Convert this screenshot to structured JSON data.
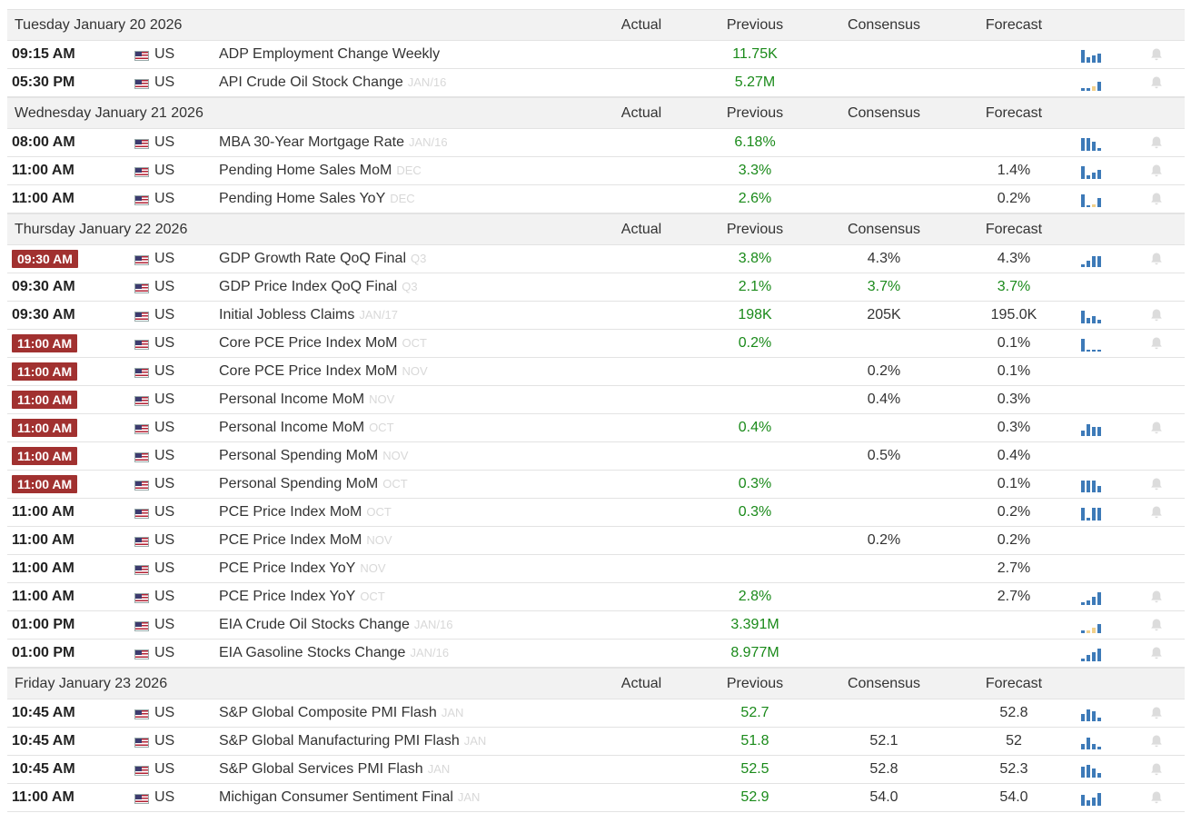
{
  "columns": {
    "actual": "Actual",
    "previous": "Previous",
    "consensus": "Consensus",
    "forecast": "Forecast"
  },
  "days": [
    {
      "title": "Tuesday January 20 2026",
      "events": [
        {
          "time": "09:15 AM",
          "badge": false,
          "country": "US",
          "name": "ADP Employment Change Weekly",
          "ref": "",
          "previous": "11.75K",
          "consensus": "",
          "forecast": "",
          "consensus_green": false,
          "forecast_green": false,
          "spark": [
            14,
            6,
            8,
            10
          ],
          "neg": [],
          "bell": true
        },
        {
          "time": "05:30 PM",
          "badge": false,
          "country": "US",
          "name": "API Crude Oil Stock Change",
          "ref": "JAN/16",
          "previous": "5.27M",
          "consensus": "",
          "forecast": "",
          "consensus_green": false,
          "forecast_green": false,
          "spark": [
            3,
            3,
            5,
            10
          ],
          "neg": [
            2
          ],
          "bell": true
        }
      ]
    },
    {
      "title": "Wednesday January 21 2026",
      "events": [
        {
          "time": "08:00 AM",
          "badge": false,
          "country": "US",
          "name": "MBA 30-Year Mortgage Rate",
          "ref": "JAN/16",
          "previous": "6.18%",
          "consensus": "",
          "forecast": "",
          "consensus_green": false,
          "forecast_green": false,
          "spark": [
            14,
            14,
            10,
            3
          ],
          "neg": [],
          "bell": true
        },
        {
          "time": "11:00 AM",
          "badge": false,
          "country": "US",
          "name": "Pending Home Sales MoM",
          "ref": "DEC",
          "previous": "3.3%",
          "consensus": "",
          "forecast": "1.4%",
          "consensus_green": false,
          "forecast_green": false,
          "spark": [
            14,
            4,
            7,
            10
          ],
          "neg": [],
          "bell": true
        },
        {
          "time": "11:00 AM",
          "badge": false,
          "country": "US",
          "name": "Pending Home Sales YoY",
          "ref": "DEC",
          "previous": "2.6%",
          "consensus": "",
          "forecast": "0.2%",
          "consensus_green": false,
          "forecast_green": false,
          "spark": [
            14,
            2,
            3,
            10
          ],
          "neg": [
            2
          ],
          "bell": true
        }
      ]
    },
    {
      "title": "Thursday January 22 2026",
      "events": [
        {
          "time": "09:30 AM",
          "badge": true,
          "country": "US",
          "name": "GDP Growth Rate QoQ Final",
          "ref": "Q3",
          "previous": "3.8%",
          "consensus": "4.3%",
          "forecast": "4.3%",
          "consensus_green": false,
          "forecast_green": false,
          "spark": [
            3,
            7,
            12,
            12
          ],
          "neg": [],
          "bell": true
        },
        {
          "time": "09:30 AM",
          "badge": false,
          "country": "US",
          "name": "GDP Price Index QoQ Final",
          "ref": "Q3",
          "previous": "2.1%",
          "consensus": "3.7%",
          "forecast": "3.7%",
          "consensus_green": true,
          "forecast_green": true,
          "spark": [],
          "neg": [],
          "bell": false
        },
        {
          "time": "09:30 AM",
          "badge": false,
          "country": "US",
          "name": "Initial Jobless Claims",
          "ref": "JAN/17",
          "previous": "198K",
          "consensus": "205K",
          "forecast": "195.0K",
          "consensus_green": false,
          "forecast_green": false,
          "spark": [
            14,
            6,
            8,
            4
          ],
          "neg": [],
          "bell": true
        },
        {
          "time": "11:00 AM",
          "badge": true,
          "country": "US",
          "name": "Core PCE Price Index MoM",
          "ref": "OCT",
          "previous": "0.2%",
          "consensus": "",
          "forecast": "0.1%",
          "consensus_green": false,
          "forecast_green": false,
          "spark": [
            14,
            2,
            2,
            2
          ],
          "neg": [],
          "bell": true
        },
        {
          "time": "11:00 AM",
          "badge": true,
          "country": "US",
          "name": "Core PCE Price Index MoM",
          "ref": "NOV",
          "previous": "",
          "consensus": "0.2%",
          "forecast": "0.1%",
          "consensus_green": false,
          "forecast_green": false,
          "spark": [],
          "neg": [],
          "bell": false
        },
        {
          "time": "11:00 AM",
          "badge": true,
          "country": "US",
          "name": "Personal Income MoM",
          "ref": "NOV",
          "previous": "",
          "consensus": "0.4%",
          "forecast": "0.3%",
          "consensus_green": false,
          "forecast_green": false,
          "spark": [],
          "neg": [],
          "bell": false
        },
        {
          "time": "11:00 AM",
          "badge": true,
          "country": "US",
          "name": "Personal Income MoM",
          "ref": "OCT",
          "previous": "0.4%",
          "consensus": "",
          "forecast": "0.3%",
          "consensus_green": false,
          "forecast_green": false,
          "spark": [
            6,
            13,
            10,
            10
          ],
          "neg": [],
          "bell": true
        },
        {
          "time": "11:00 AM",
          "badge": true,
          "country": "US",
          "name": "Personal Spending MoM",
          "ref": "NOV",
          "previous": "",
          "consensus": "0.5%",
          "forecast": "0.4%",
          "consensus_green": false,
          "forecast_green": false,
          "spark": [],
          "neg": [],
          "bell": false
        },
        {
          "time": "11:00 AM",
          "badge": true,
          "country": "US",
          "name": "Personal Spending MoM",
          "ref": "OCT",
          "previous": "0.3%",
          "consensus": "",
          "forecast": "0.1%",
          "consensus_green": false,
          "forecast_green": false,
          "spark": [
            13,
            13,
            13,
            7
          ],
          "neg": [],
          "bell": true
        },
        {
          "time": "11:00 AM",
          "badge": false,
          "country": "US",
          "name": "PCE Price Index MoM",
          "ref": "OCT",
          "previous": "0.3%",
          "consensus": "",
          "forecast": "0.2%",
          "consensus_green": false,
          "forecast_green": false,
          "spark": [
            14,
            3,
            14,
            14
          ],
          "neg": [],
          "bell": true
        },
        {
          "time": "11:00 AM",
          "badge": false,
          "country": "US",
          "name": "PCE Price Index MoM",
          "ref": "NOV",
          "previous": "",
          "consensus": "0.2%",
          "forecast": "0.2%",
          "consensus_green": false,
          "forecast_green": false,
          "spark": [],
          "neg": [],
          "bell": false
        },
        {
          "time": "11:00 AM",
          "badge": false,
          "country": "US",
          "name": "PCE Price Index YoY",
          "ref": "NOV",
          "previous": "",
          "consensus": "",
          "forecast": "2.7%",
          "consensus_green": false,
          "forecast_green": false,
          "spark": [],
          "neg": [],
          "bell": false
        },
        {
          "time": "11:00 AM",
          "badge": false,
          "country": "US",
          "name": "PCE Price Index YoY",
          "ref": "OCT",
          "previous": "2.8%",
          "consensus": "",
          "forecast": "2.7%",
          "consensus_green": false,
          "forecast_green": false,
          "spark": [
            3,
            5,
            9,
            14
          ],
          "neg": [],
          "bell": true
        },
        {
          "time": "01:00 PM",
          "badge": false,
          "country": "US",
          "name": "EIA Crude Oil Stocks Change",
          "ref": "JAN/16",
          "previous": "3.391M",
          "consensus": "",
          "forecast": "",
          "consensus_green": false,
          "forecast_green": false,
          "spark": [
            3,
            3,
            6,
            10
          ],
          "neg": [
            1,
            2
          ],
          "bell": true
        },
        {
          "time": "01:00 PM",
          "badge": false,
          "country": "US",
          "name": "EIA Gasoline Stocks Change",
          "ref": "JAN/16",
          "previous": "8.977M",
          "consensus": "",
          "forecast": "",
          "consensus_green": false,
          "forecast_green": false,
          "spark": [
            3,
            7,
            10,
            14
          ],
          "neg": [],
          "bell": true
        }
      ]
    },
    {
      "title": "Friday January 23 2026",
      "events": [
        {
          "time": "10:45 AM",
          "badge": false,
          "country": "US",
          "name": "S&P Global Composite PMI Flash",
          "ref": "JAN",
          "previous": "52.7",
          "consensus": "",
          "forecast": "52.8",
          "consensus_green": false,
          "forecast_green": false,
          "spark": [
            8,
            13,
            11,
            4
          ],
          "neg": [],
          "bell": true
        },
        {
          "time": "10:45 AM",
          "badge": false,
          "country": "US",
          "name": "S&P Global Manufacturing PMI Flash",
          "ref": "JAN",
          "previous": "51.8",
          "consensus": "52.1",
          "forecast": "52",
          "consensus_green": false,
          "forecast_green": false,
          "spark": [
            6,
            13,
            6,
            3
          ],
          "neg": [],
          "bell": true
        },
        {
          "time": "10:45 AM",
          "badge": false,
          "country": "US",
          "name": "S&P Global Services PMI Flash",
          "ref": "JAN",
          "previous": "52.5",
          "consensus": "52.8",
          "forecast": "52.3",
          "consensus_green": false,
          "forecast_green": false,
          "spark": [
            12,
            14,
            10,
            5
          ],
          "neg": [],
          "bell": true
        },
        {
          "time": "11:00 AM",
          "badge": false,
          "country": "US",
          "name": "Michigan Consumer Sentiment Final",
          "ref": "JAN",
          "previous": "52.9",
          "consensus": "54.0",
          "forecast": "54.0",
          "consensus_green": false,
          "forecast_green": false,
          "spark": [
            12,
            6,
            9,
            14
          ],
          "neg": [],
          "bell": true
        }
      ]
    }
  ],
  "icons": {
    "flag": "us-flag-icon",
    "chart": "bar-chart-icon",
    "bell": "bell-icon"
  },
  "colors": {
    "previous_value": "#1a8a1a",
    "badge": "#a13130",
    "spark_bar": "#3d7ab8",
    "spark_neg": "#f2d08a",
    "ref_text": "#d8d8d8",
    "header_bg": "#f2f2f2"
  }
}
